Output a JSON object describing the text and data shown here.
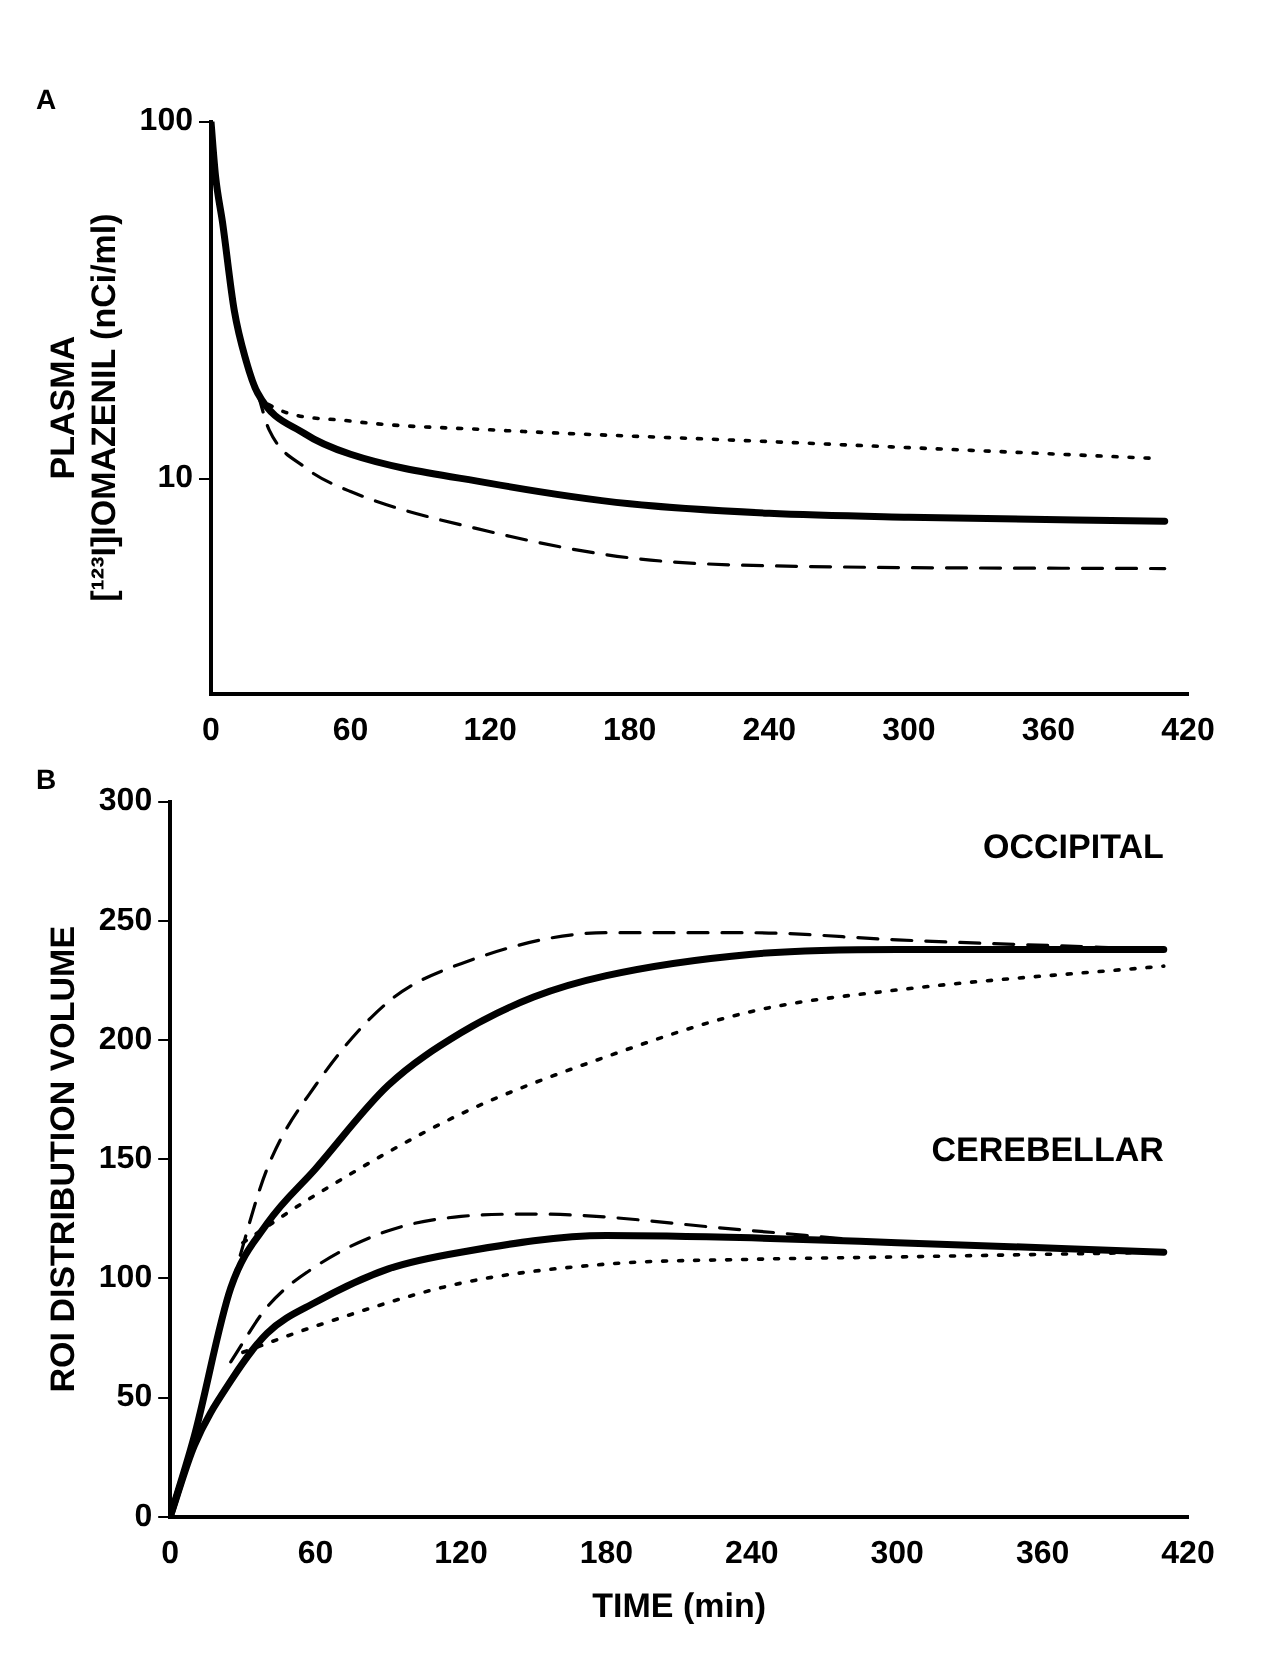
{
  "chart_data": [
    {
      "type": "line",
      "title": "A",
      "ylabel": "PLASMA\n[¹²³I]IOMAZENIL (nCi/ml)",
      "log": "y",
      "xlim": [
        0,
        420
      ],
      "xticks": [
        0,
        60,
        120,
        180,
        240,
        300,
        360,
        420
      ],
      "ylim": [
        2.5,
        100
      ],
      "yticks": [
        10,
        100
      ],
      "grid": false,
      "legend": false,
      "series": [
        {
          "color": "#000000",
          "line_style": "solid",
          "x": [
            0,
            2,
            5,
            10,
            15,
            20,
            40,
            60,
            120,
            180,
            240,
            300,
            410
          ],
          "values": [
            100,
            70,
            52,
            29.6,
            21.5,
            17.4,
            13.4,
            11.7,
            9.7,
            8.5,
            8.0,
            7.8,
            7.6
          ]
        },
        {
          "color": "#000000",
          "line_style": "dotted",
          "x": [
            20,
            25,
            60,
            120,
            240,
            405
          ],
          "values": [
            17.4,
            16.1,
            14.5,
            13.7,
            12.7,
            11.4
          ]
        },
        {
          "color": "#000000",
          "line_style": "dashed",
          "x": [
            20,
            25,
            40,
            60,
            120,
            180,
            240,
            410
          ],
          "values": [
            17.4,
            13.7,
            10.8,
            9.2,
            7.1,
            6.0,
            5.7,
            5.6
          ]
        }
      ]
    },
    {
      "type": "line",
      "title": "B",
      "xlabel": "TIME (min)",
      "ylabel": "ROI DISTRIBUTION VOLUME",
      "xlim": [
        0,
        420
      ],
      "xticks": [
        0,
        60,
        120,
        180,
        240,
        300,
        360,
        420
      ],
      "ylim": [
        0,
        300
      ],
      "yticks": [
        0,
        50,
        100,
        150,
        200,
        250,
        300
      ],
      "grid": false,
      "legend": false,
      "annotations": [
        {
          "text": "OCCIPITAL",
          "x": 410,
          "y": 238
        },
        {
          "text": "CEREBELLAR",
          "x": 410,
          "y": 111
        }
      ],
      "series": [
        {
          "color": "#000000",
          "line_style": "solid",
          "x": [
            0,
            10,
            25,
            40,
            60,
            90,
            120,
            150,
            180,
            240,
            300,
            410
          ],
          "values": [
            0,
            34,
            96,
            123,
            146,
            181,
            203,
            218,
            227,
            236,
            238,
            238
          ]
        },
        {
          "color": "#000000",
          "line_style": "dashed",
          "x": [
            25,
            40,
            60,
            90,
            120,
            180,
            240,
            300,
            410
          ],
          "values": [
            96,
            146,
            181,
            216,
            232,
            245,
            245,
            242,
            238
          ]
        },
        {
          "color": "#000000",
          "line_style": "dotted",
          "x": [
            30,
            60,
            120,
            180,
            240,
            300,
            410
          ],
          "values": [
            115,
            135,
            169,
            193,
            212,
            221,
            231
          ]
        },
        {
          "color": "#000000",
          "line_style": "solid",
          "x": [
            0,
            10,
            25,
            40,
            60,
            90,
            120,
            180,
            240,
            300,
            410
          ],
          "values": [
            0,
            30,
            57,
            77,
            90,
            104,
            111,
            118,
            117,
            115,
            111
          ]
        },
        {
          "color": "#000000",
          "line_style": "dashed",
          "x": [
            25,
            40,
            60,
            90,
            120,
            150,
            240,
            300,
            410
          ],
          "values": [
            65,
            88,
            105,
            120,
            126,
            127,
            120,
            115,
            111
          ]
        },
        {
          "color": "#000000",
          "line_style": "dotted",
          "x": [
            30,
            60,
            120,
            180,
            240,
            300,
            410
          ],
          "values": [
            69,
            80,
            98,
            106,
            108,
            109,
            111
          ]
        }
      ]
    }
  ]
}
